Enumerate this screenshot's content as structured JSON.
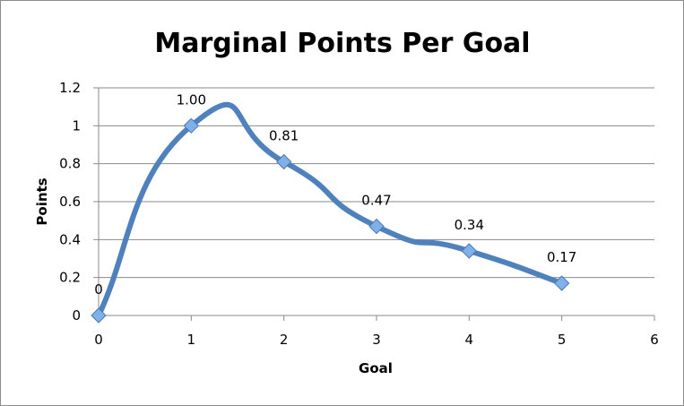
{
  "chart_data": {
    "type": "line",
    "title": "Marginal Points Per Goal",
    "xlabel": "Goal",
    "ylabel": "Points",
    "xlim": [
      0,
      6
    ],
    "ylim": [
      0,
      1.2
    ],
    "x_ticks": [
      "0",
      "1",
      "2",
      "3",
      "4",
      "5",
      "6"
    ],
    "y_ticks": [
      "0",
      "0.2",
      "0.4",
      "0.6",
      "0.8",
      "1",
      "1.2"
    ],
    "grid": true,
    "legend": "none",
    "smoothed": true,
    "series": [
      {
        "color": "#4f81bd",
        "marker_color": "#7fb0e8",
        "x": [
          0,
          1,
          2,
          3,
          4,
          5
        ],
        "values": [
          0,
          1.0,
          0.81,
          0.47,
          0.34,
          0.17
        ],
        "labels": [
          "0",
          "1.00",
          "0.81",
          "0.47",
          "0.34",
          "0.17"
        ]
      }
    ]
  }
}
